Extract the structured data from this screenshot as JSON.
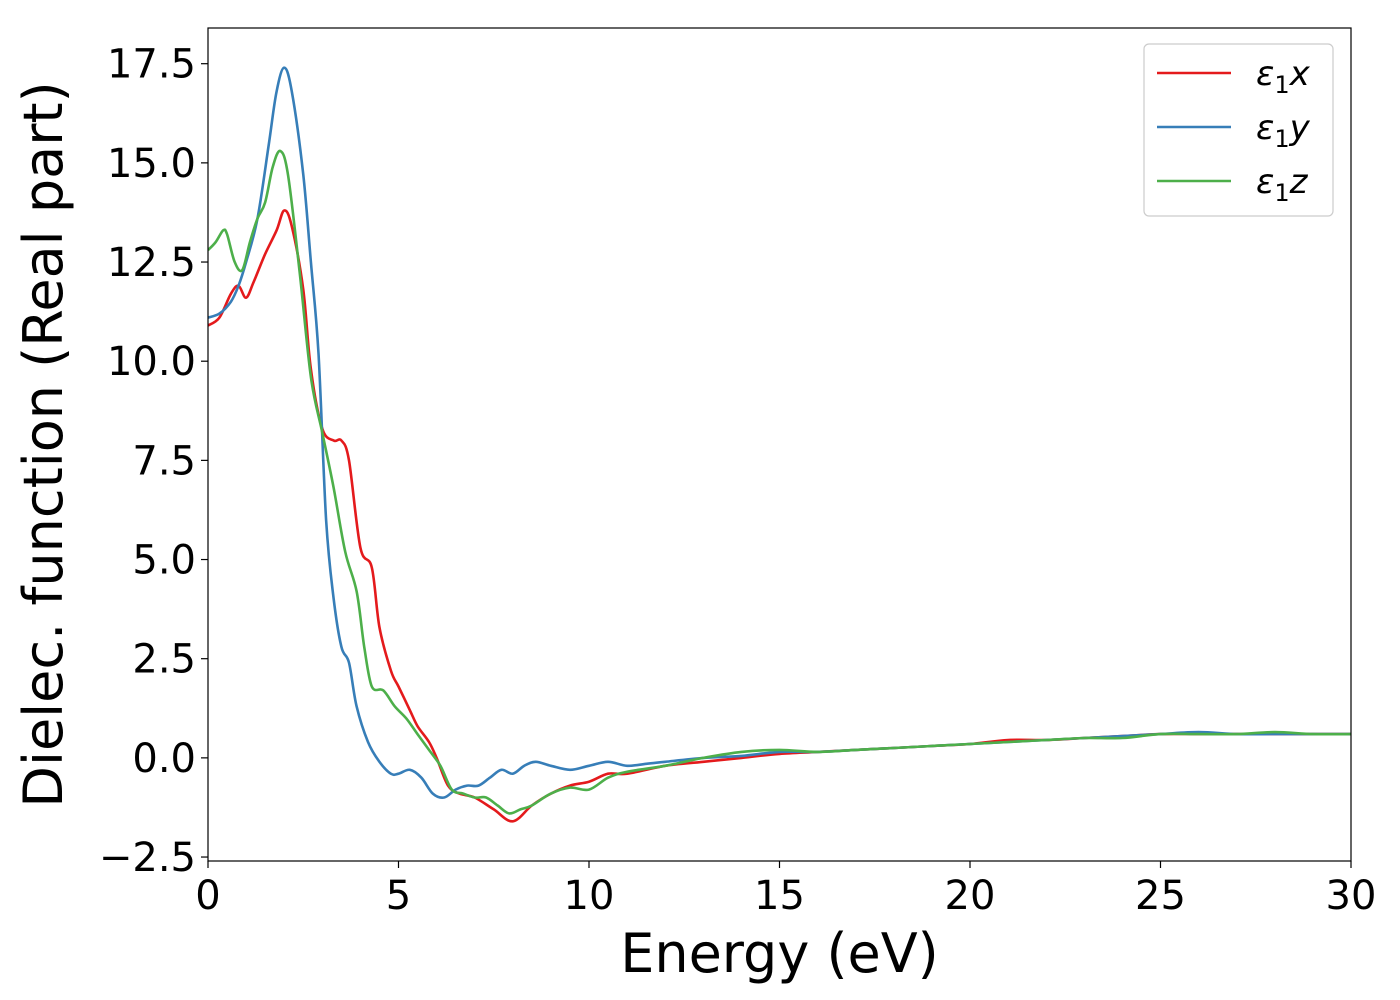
{
  "chart_data": {
    "type": "line",
    "title": "",
    "xlabel": "Energy (eV)",
    "ylabel": "Dielec. function (Real part)",
    "xlim": [
      0,
      30
    ],
    "ylim": [
      -2.6,
      18.4
    ],
    "xticks": [
      0,
      5,
      10,
      15,
      20,
      25,
      30
    ],
    "xtick_labels": [
      "0",
      "5",
      "10",
      "15",
      "20",
      "25",
      "30"
    ],
    "yticks": [
      -2.5,
      0.0,
      2.5,
      5.0,
      7.5,
      10.0,
      12.5,
      15.0,
      17.5
    ],
    "ytick_labels": [
      "−2.5",
      "0.0",
      "2.5",
      "5.0",
      "7.5",
      "10.0",
      "12.5",
      "15.0",
      "17.5"
    ],
    "grid": false,
    "legend_position": "top-right",
    "series": [
      {
        "name": "ε₁x",
        "legend_main": "ε",
        "legend_sub": "1",
        "legend_tail": "x",
        "color": "#e41a1c",
        "x": [
          0,
          0.3,
          0.6,
          0.8,
          1.0,
          1.2,
          1.5,
          1.8,
          2.0,
          2.2,
          2.5,
          2.7,
          3.0,
          3.3,
          3.5,
          3.7,
          4.0,
          4.3,
          4.5,
          4.8,
          5.0,
          5.3,
          5.5,
          5.8,
          6.0,
          6.3,
          6.6,
          7.0,
          7.5,
          8.0,
          8.5,
          9.0,
          9.5,
          10.0,
          10.5,
          11.0,
          12.0,
          13.0,
          14.0,
          15.0,
          16.0,
          17.0,
          18.0,
          19.0,
          20.0,
          21.0,
          22.0,
          23.0,
          24.0,
          25.0,
          26.0,
          27.0,
          28.0,
          29.0,
          30.0
        ],
        "y": [
          10.9,
          11.1,
          11.7,
          11.9,
          11.6,
          12.0,
          12.7,
          13.3,
          13.8,
          13.4,
          11.8,
          9.8,
          8.3,
          8.0,
          8.0,
          7.5,
          5.3,
          4.8,
          3.3,
          2.2,
          1.8,
          1.2,
          0.8,
          0.4,
          0.0,
          -0.7,
          -0.9,
          -1.0,
          -1.3,
          -1.6,
          -1.2,
          -0.9,
          -0.7,
          -0.6,
          -0.4,
          -0.4,
          -0.2,
          -0.1,
          0.0,
          0.1,
          0.15,
          0.2,
          0.25,
          0.3,
          0.35,
          0.45,
          0.45,
          0.5,
          0.55,
          0.6,
          0.6,
          0.6,
          0.6,
          0.6,
          0.6
        ]
      },
      {
        "name": "ε₁y",
        "legend_main": "ε",
        "legend_sub": "1",
        "legend_tail": "y",
        "color": "#377eb8",
        "x": [
          0,
          0.3,
          0.6,
          0.8,
          1.0,
          1.3,
          1.6,
          1.8,
          2.0,
          2.2,
          2.5,
          2.7,
          2.9,
          3.1,
          3.3,
          3.5,
          3.7,
          3.9,
          4.2,
          4.5,
          4.8,
          5.0,
          5.3,
          5.6,
          5.9,
          6.2,
          6.5,
          6.8,
          7.1,
          7.4,
          7.7,
          8.0,
          8.3,
          8.6,
          9.0,
          9.5,
          10.0,
          10.5,
          11.0,
          11.5,
          12.0,
          13.0,
          14.0,
          15.0,
          16.0,
          17.0,
          18.0,
          19.0,
          20.0,
          21.0,
          22.0,
          23.0,
          24.0,
          25.0,
          26.0,
          27.0,
          28.0,
          29.0,
          30.0
        ],
        "y": [
          11.1,
          11.2,
          11.5,
          11.9,
          12.5,
          13.6,
          15.5,
          16.8,
          17.4,
          16.8,
          14.7,
          12.5,
          10.2,
          6.0,
          4.0,
          2.8,
          2.4,
          1.3,
          0.4,
          -0.1,
          -0.4,
          -0.4,
          -0.3,
          -0.5,
          -0.9,
          -1.0,
          -0.8,
          -0.7,
          -0.7,
          -0.5,
          -0.3,
          -0.4,
          -0.2,
          -0.1,
          -0.2,
          -0.3,
          -0.2,
          -0.1,
          -0.2,
          -0.15,
          -0.1,
          0.0,
          0.05,
          0.15,
          0.15,
          0.2,
          0.25,
          0.3,
          0.35,
          0.4,
          0.45,
          0.5,
          0.55,
          0.6,
          0.65,
          0.6,
          0.6,
          0.6,
          0.6
        ]
      },
      {
        "name": "ε₁z",
        "legend_main": "ε",
        "legend_sub": "1",
        "legend_tail": "z",
        "color": "#4daf4a",
        "x": [
          0,
          0.2,
          0.4,
          0.5,
          0.7,
          0.9,
          1.1,
          1.3,
          1.5,
          1.7,
          1.9,
          2.1,
          2.4,
          2.7,
          3.0,
          3.3,
          3.6,
          3.9,
          4.1,
          4.3,
          4.6,
          4.9,
          5.2,
          5.5,
          5.8,
          6.1,
          6.4,
          6.7,
          7.0,
          7.3,
          7.6,
          7.9,
          8.2,
          8.5,
          9.0,
          9.5,
          10.0,
          10.5,
          11.0,
          12.0,
          13.0,
          14.0,
          15.0,
          16.0,
          17.0,
          18.0,
          19.0,
          20.0,
          21.0,
          22.0,
          23.0,
          24.0,
          25.0,
          26.0,
          27.0,
          28.0,
          29.0,
          30.0
        ],
        "y": [
          12.8,
          13.0,
          13.3,
          13.2,
          12.5,
          12.3,
          13.0,
          13.6,
          14.0,
          14.9,
          15.3,
          14.7,
          12.3,
          9.6,
          8.2,
          6.8,
          5.2,
          4.2,
          2.8,
          1.8,
          1.7,
          1.3,
          1.0,
          0.6,
          0.2,
          -0.2,
          -0.8,
          -0.9,
          -1.0,
          -1.0,
          -1.2,
          -1.4,
          -1.3,
          -1.2,
          -0.9,
          -0.75,
          -0.8,
          -0.5,
          -0.35,
          -0.2,
          0.0,
          0.15,
          0.2,
          0.15,
          0.2,
          0.25,
          0.3,
          0.35,
          0.4,
          0.45,
          0.5,
          0.5,
          0.6,
          0.6,
          0.6,
          0.65,
          0.6,
          0.6
        ]
      }
    ]
  }
}
